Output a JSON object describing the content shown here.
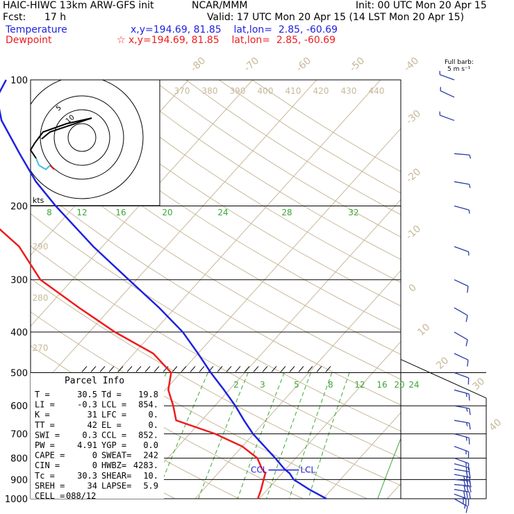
{
  "header": {
    "model_line": "HAIC-HIWC 13km ARW-GFS init",
    "org": "NCAR/MMM",
    "init": "Init: 00 UTC Mon 20 Apr 15",
    "fcst_label": "Fcst:",
    "fcst_value": "17 h",
    "valid": "Valid: 17 UTC Mon 20 Apr 15 (14 LST Mon 20 Apr 15)",
    "temperature_label": "Temperature",
    "temperature_loc": "x,y=194.69, 81.85    lat,lon=  2.85, -60.69",
    "dewpoint_label": "Dewpoint",
    "dewpoint_loc": "☆ x,y=194.69, 81.85    lat,lon=  2.85, -60.69",
    "full_barb": "Full barb:",
    "full_barb_unit": "5 m s⁻¹"
  },
  "colors": {
    "temperature": "#1f22e0",
    "dewpoint": "#ee1c1c",
    "isotherm": "#c8b89a",
    "mixing_ratio": "#3aa832",
    "wind": "#2a3aa8",
    "grid": "#000000"
  },
  "chart_data": {
    "type": "line",
    "title": "",
    "pressure_levels": [
      100,
      200,
      300,
      400,
      500,
      600,
      700,
      800,
      900,
      1000
    ],
    "x_tick_labels_isotherm": [
      "-80",
      "-70",
      "-60",
      "-50",
      "-40",
      "-30",
      "-20",
      "-10",
      "0",
      "10",
      "20",
      "30",
      "40"
    ],
    "theta_labels": [
      "370",
      "380",
      "390",
      "400",
      "410",
      "420",
      "430",
      "440"
    ],
    "theta_left_labels": [
      "290",
      "280",
      "270"
    ],
    "mixing_ratio_upper_labels": [
      "8",
      "12",
      "16",
      "20",
      "24",
      "28",
      "32"
    ],
    "mixing_ratio_lower_labels": [
      "2",
      "3",
      "5",
      "8",
      "12",
      "16",
      "20",
      "24"
    ],
    "hodograph": {
      "ring_label": "5",
      "ring_label_inner": "10",
      "units": "kts"
    },
    "ccl_label": "CCL",
    "lcl_label": "LCL",
    "series": [
      {
        "name": "Temperature",
        "points": [
          [
            1000,
            30.5
          ],
          [
            950,
            26.5
          ],
          [
            900,
            22.7
          ],
          [
            870,
            21.2
          ],
          [
            850,
            19.8
          ],
          [
            800,
            16.8
          ],
          [
            700,
            9.9
          ],
          [
            650,
            6.6
          ],
          [
            600,
            3.2
          ],
          [
            550,
            -0.8
          ],
          [
            500,
            -5.3
          ],
          [
            450,
            -10.0
          ],
          [
            400,
            -15.4
          ],
          [
            350,
            -22.5
          ],
          [
            300,
            -31.2
          ],
          [
            250,
            -41.4
          ],
          [
            200,
            -53.0
          ],
          [
            175,
            -59.5
          ],
          [
            150,
            -66.0
          ],
          [
            125,
            -73.5
          ],
          [
            110,
            -77.5
          ],
          [
            100,
            -78.5
          ]
        ]
      },
      {
        "name": "Dewpoint",
        "points": [
          [
            1000,
            19.8
          ],
          [
            950,
            19.0
          ],
          [
            900,
            18.0
          ],
          [
            870,
            17.4
          ],
          [
            850,
            16.3
          ],
          [
            800,
            14.0
          ],
          [
            750,
            10.0
          ],
          [
            700,
            4.0
          ],
          [
            650,
            -4.0
          ],
          [
            600,
            -6.5
          ],
          [
            550,
            -9.5
          ],
          [
            500,
            -11.5
          ],
          [
            450,
            -17.0
          ],
          [
            400,
            -26.0
          ],
          [
            350,
            -35.0
          ],
          [
            300,
            -45.0
          ],
          [
            250,
            -53.0
          ],
          [
            210,
            -63.0
          ],
          [
            200,
            -63.5
          ],
          [
            175,
            -68.0
          ],
          [
            150,
            -74.0
          ],
          [
            125,
            -80.0
          ],
          [
            110,
            -85.0
          ],
          [
            100,
            -86.0
          ]
        ]
      }
    ],
    "wind_barbs": [
      {
        "p": 1000,
        "dir": 120,
        "spd": 8
      },
      {
        "p": 975,
        "dir": 110,
        "spd": 15
      },
      {
        "p": 950,
        "dir": 100,
        "spd": 17
      },
      {
        "p": 925,
        "dir": 95,
        "spd": 17
      },
      {
        "p": 900,
        "dir": 95,
        "spd": 16
      },
      {
        "p": 875,
        "dir": 100,
        "spd": 14
      },
      {
        "p": 850,
        "dir": 100,
        "spd": 12
      },
      {
        "p": 825,
        "dir": 105,
        "spd": 10
      },
      {
        "p": 800,
        "dir": 110,
        "spd": 9
      },
      {
        "p": 750,
        "dir": 110,
        "spd": 8
      },
      {
        "p": 700,
        "dir": 105,
        "spd": 8
      },
      {
        "p": 650,
        "dir": 100,
        "spd": 9
      },
      {
        "p": 600,
        "dir": 100,
        "spd": 9
      },
      {
        "p": 550,
        "dir": 105,
        "spd": 8
      },
      {
        "p": 500,
        "dir": 110,
        "spd": 7
      },
      {
        "p": 450,
        "dir": 115,
        "spd": 6
      },
      {
        "p": 400,
        "dir": 120,
        "spd": 5
      },
      {
        "p": 350,
        "dir": 120,
        "spd": 5
      },
      {
        "p": 300,
        "dir": 115,
        "spd": 5
      },
      {
        "p": 250,
        "dir": 110,
        "spd": 4
      },
      {
        "p": 200,
        "dir": 105,
        "spd": 4
      },
      {
        "p": 175,
        "dir": 100,
        "spd": 3
      },
      {
        "p": 150,
        "dir": 95,
        "spd": 2
      },
      {
        "p": 125,
        "dir": 290,
        "spd": 2
      },
      {
        "p": 110,
        "dir": 295,
        "spd": 2
      },
      {
        "p": 100,
        "dir": 290,
        "spd": 2
      }
    ]
  },
  "parcel_info": {
    "title": "Parcel Info",
    "rows": [
      [
        "T  =",
        "30.5",
        "Td =",
        "19.8"
      ],
      [
        "LI =",
        "-0.3",
        "LCL =",
        "854."
      ],
      [
        "K  =",
        "31",
        "LFC =",
        "0."
      ],
      [
        "TT =",
        "42",
        "EL =",
        "0."
      ],
      [
        "SWI =",
        "0.3",
        "CCL =",
        "852."
      ],
      [
        "PW =",
        "4.91",
        "YGP =",
        "0.0"
      ],
      [
        "CAPE =",
        "0",
        "SWEAT=",
        "242"
      ],
      [
        "CIN =",
        "0",
        "HWBZ=",
        "4283."
      ],
      [
        "Tc =",
        "30.3",
        "SHEAR=",
        "10."
      ],
      [
        "SREH =",
        "34",
        "LAPSE=",
        "5.9"
      ],
      [
        "CELL =",
        "088/12",
        "",
        ""
      ]
    ]
  }
}
